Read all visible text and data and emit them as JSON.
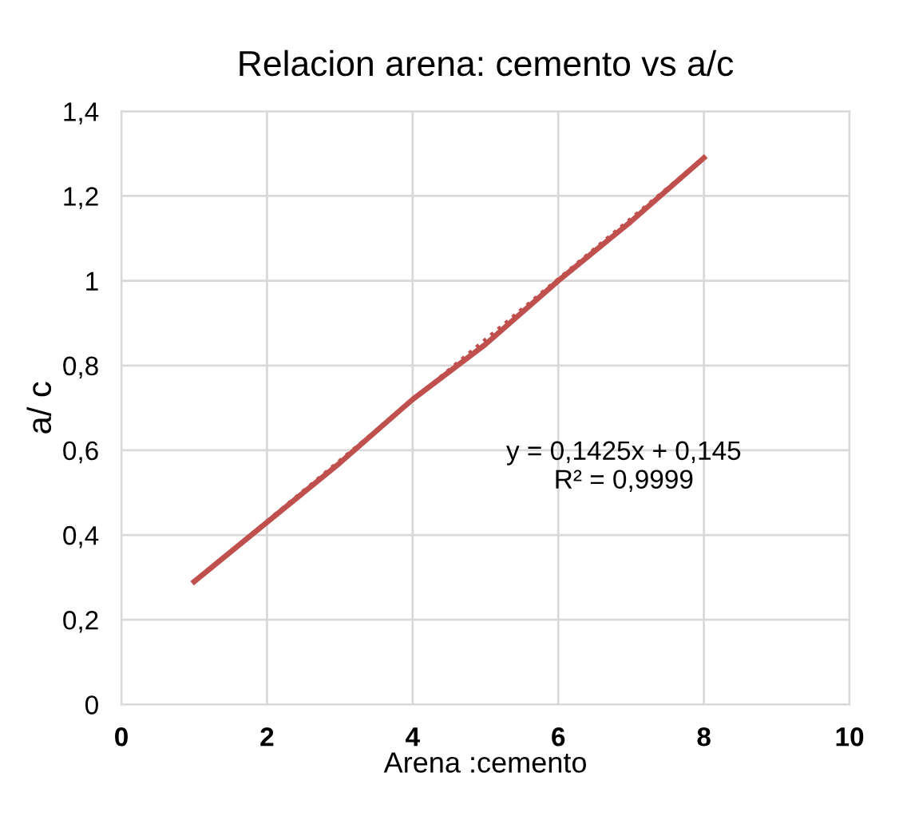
{
  "chart_data": {
    "type": "line",
    "title": "Relacion arena: cemento vs a/c",
    "xlabel": "Arena :cemento",
    "ylabel": "a/ c",
    "series": [
      {
        "color": "#c0504d",
        "x": [
          1,
          2,
          3,
          4,
          5,
          6,
          7,
          8
        ],
        "values": [
          0.29,
          0.43,
          0.57,
          0.72,
          0.85,
          1.0,
          1.14,
          1.29
        ],
        "line_style": "solid"
      },
      {
        "color": "#c0504d",
        "x": [
          1,
          8
        ],
        "values": [
          0.29,
          1.29
        ],
        "line_style": "dotted"
      }
    ],
    "annotations": [
      "y = 0,1425x + 0,145\nR² = 0,9999"
    ],
    "xlim": [
      0,
      10
    ],
    "xticks": [
      0,
      2,
      4,
      6,
      8,
      10
    ],
    "ylim": [
      0,
      1.4
    ],
    "yticks": [
      0,
      {
        "value": 0.2,
        "label": "0,2"
      },
      {
        "value": 0.4,
        "label": "0,4"
      },
      {
        "value": 0.6,
        "label": "0,6"
      },
      {
        "value": 0.8,
        "label": "0,8"
      },
      1,
      {
        "value": 1.2,
        "label": "1,2"
      },
      {
        "value": 1.4,
        "label": "1,4"
      }
    ],
    "grid": true,
    "marker": "none",
    "legend": false
  }
}
